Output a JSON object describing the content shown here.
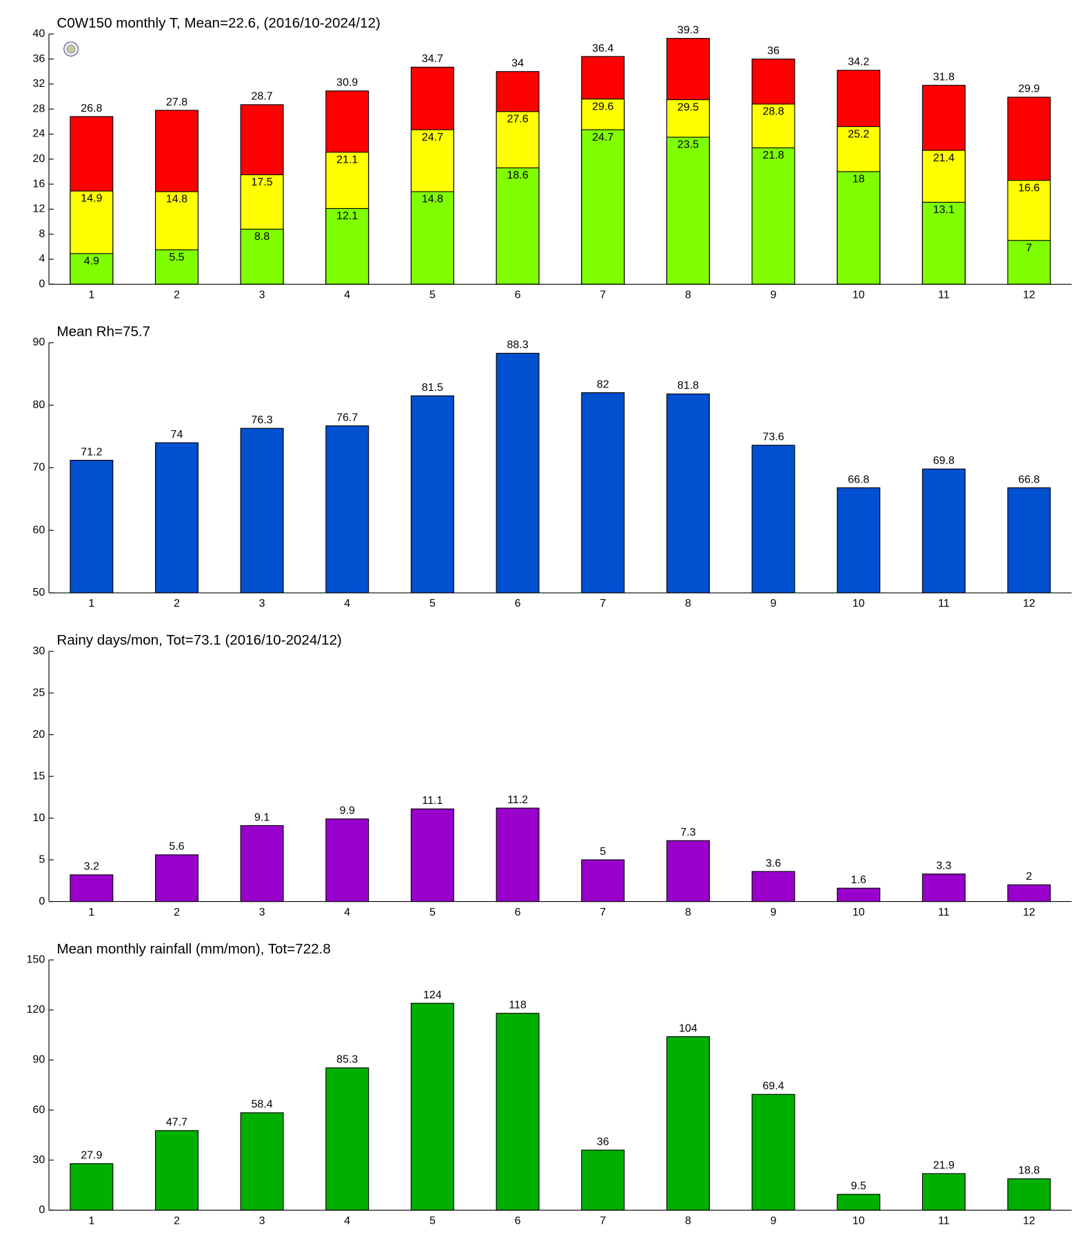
{
  "chart_data": [
    {
      "type": "bar",
      "title": "C0W150 monthly T, Mean=22.6, (2016/10-2024/12)",
      "categories": [
        "1",
        "2",
        "3",
        "4",
        "5",
        "6",
        "7",
        "8",
        "9",
        "10",
        "11",
        "12"
      ],
      "series": [
        {
          "color": "#ff0000",
          "values": [
            26.8,
            27.8,
            28.7,
            30.9,
            34.7,
            34,
            36.4,
            39.3,
            36,
            34.2,
            31.8,
            29.9
          ]
        },
        {
          "color": "#ffff00",
          "values": [
            14.9,
            14.8,
            17.5,
            21.1,
            24.7,
            27.6,
            29.6,
            29.5,
            28.8,
            25.2,
            21.4,
            16.6
          ]
        },
        {
          "color": "#80ff00",
          "values": [
            4.9,
            5.5,
            8.8,
            12.1,
            14.8,
            18.6,
            24.7,
            23.5,
            21.8,
            18,
            13.1,
            7
          ]
        }
      ],
      "ylim": [
        0,
        40
      ],
      "yticks": [
        0,
        4,
        8,
        12,
        16,
        20,
        24,
        28,
        32,
        36,
        40
      ]
    },
    {
      "type": "bar",
      "title": "Mean Rh=75.7",
      "categories": [
        "1",
        "2",
        "3",
        "4",
        "5",
        "6",
        "7",
        "8",
        "9",
        "10",
        "11",
        "12"
      ],
      "values": [
        71.2,
        74,
        76.3,
        76.7,
        81.5,
        88.3,
        82,
        81.8,
        73.6,
        66.8,
        69.8,
        66.8
      ],
      "color": "#0050d0",
      "ylim": [
        50,
        90
      ],
      "yticks": [
        50,
        60,
        70,
        80,
        90
      ]
    },
    {
      "type": "bar",
      "title": "Rainy days/mon, Tot=73.1 (2016/10-2024/12)",
      "categories": [
        "1",
        "2",
        "3",
        "4",
        "5",
        "6",
        "7",
        "8",
        "9",
        "10",
        "11",
        "12"
      ],
      "values": [
        3.2,
        5.6,
        9.1,
        9.9,
        11.1,
        11.2,
        5,
        7.3,
        3.6,
        1.6,
        3.3,
        2
      ],
      "color": "#9900cc",
      "ylim": [
        0,
        30
      ],
      "yticks": [
        0,
        5,
        10,
        15,
        20,
        25,
        30
      ]
    },
    {
      "type": "bar",
      "title": "Mean monthly rainfall (mm/mon), Tot=722.8",
      "categories": [
        "1",
        "2",
        "3",
        "4",
        "5",
        "6",
        "7",
        "8",
        "9",
        "10",
        "11",
        "12"
      ],
      "values": [
        27.9,
        47.7,
        58.4,
        85.3,
        124,
        118,
        36,
        104,
        69.4,
        9.5,
        21.9,
        18.8
      ],
      "color": "#00b000",
      "ylim": [
        0,
        150
      ],
      "yticks": [
        0,
        30,
        60,
        90,
        120,
        150
      ]
    }
  ]
}
